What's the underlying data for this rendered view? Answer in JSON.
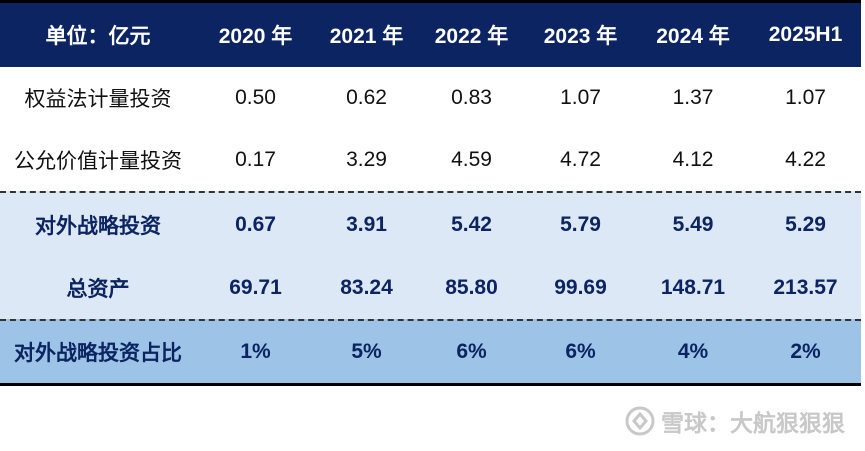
{
  "header": {
    "unit": "单位：亿元",
    "columns": [
      "2020 年",
      "2021 年",
      "2022 年",
      "2023 年",
      "2024 年",
      "2025H1"
    ]
  },
  "rows": [
    {
      "label": "权益法计量投资",
      "values": [
        "0.50",
        "0.62",
        "0.83",
        "1.07",
        "1.37",
        "1.07"
      ]
    },
    {
      "label": "公允价值计量投资",
      "values": [
        "0.17",
        "3.29",
        "4.59",
        "4.72",
        "4.12",
        "4.22"
      ]
    },
    {
      "label": "对外战略投资",
      "values": [
        "0.67",
        "3.91",
        "5.42",
        "5.79",
        "5.49",
        "5.29"
      ]
    },
    {
      "label": "总资产",
      "values": [
        "69.71",
        "83.24",
        "85.80",
        "99.69",
        "148.71",
        "213.57"
      ]
    },
    {
      "label": "对外战略投资占比",
      "values": [
        "1%",
        "5%",
        "6%",
        "6%",
        "4%",
        "2%"
      ]
    }
  ],
  "watermark": {
    "text": "雪球：大航狠狠狠",
    "icon": "snowball-logo-icon"
  },
  "colors": {
    "header_bg": "#0c2461",
    "highlight_bg": "#dce8f5",
    "ratio_bg": "#9dc3e6",
    "accent_text": "#0c2461"
  }
}
